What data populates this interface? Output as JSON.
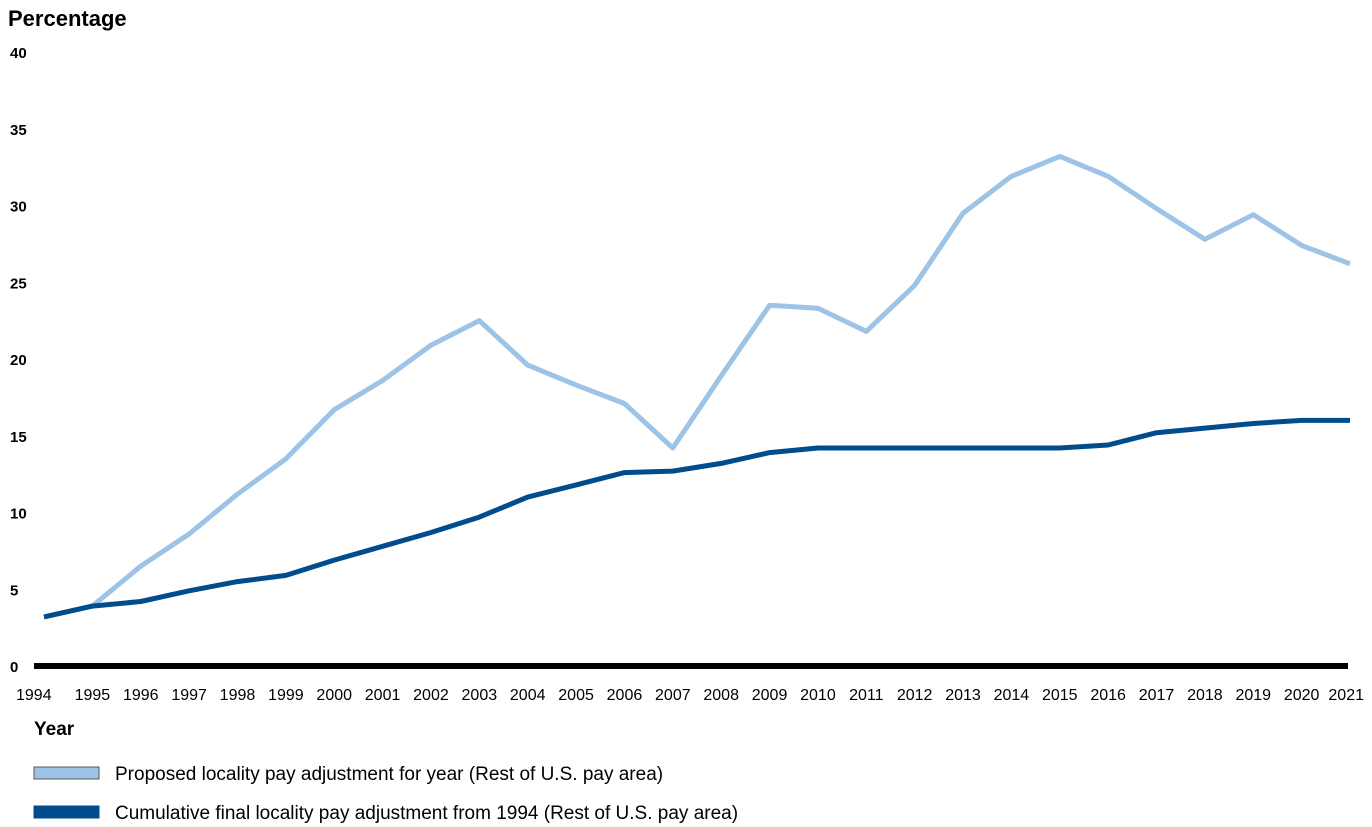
{
  "chart_data": {
    "type": "line",
    "ylabel": "Percentage",
    "xlabel": "Year",
    "ylim": [
      0,
      40
    ],
    "yticks": [
      "0",
      "5",
      "10",
      "15",
      "20",
      "25",
      "30",
      "35",
      "40"
    ],
    "x": [
      "1994",
      "1995",
      "1996",
      "1997",
      "1998",
      "1999",
      "2000",
      "2001",
      "2002",
      "2003",
      "2004",
      "2005",
      "2006",
      "2007",
      "2008",
      "2009",
      "2010",
      "2011",
      "2012",
      "2013",
      "2014",
      "2015",
      "2016",
      "2017",
      "2018",
      "2019",
      "2020",
      "2021"
    ],
    "grid": false,
    "legend_position": "bottom-left",
    "series": [
      {
        "name": "Proposed locality pay adjustment for year (Rest of U.S. pay area)",
        "color": "#9dc3e6",
        "values": [
          3.2,
          3.9,
          6.5,
          8.6,
          11.2,
          13.5,
          16.7,
          18.6,
          20.9,
          22.5,
          19.6,
          18.3,
          17.1,
          14.2,
          18.9,
          23.5,
          23.3,
          21.8,
          24.8,
          29.5,
          31.9,
          33.2,
          31.9,
          29.8,
          27.8,
          29.4,
          27.4,
          26.2
        ]
      },
      {
        "name": "Cumulative final locality pay adjustment from 1994 (Rest of U.S. pay area)",
        "color": "#004c8c",
        "values": [
          3.2,
          3.9,
          4.2,
          4.9,
          5.5,
          5.9,
          6.9,
          7.8,
          8.7,
          9.7,
          11.0,
          11.8,
          12.6,
          12.7,
          13.2,
          13.9,
          14.2,
          14.2,
          14.2,
          14.2,
          14.2,
          14.2,
          14.4,
          15.2,
          15.5,
          15.8,
          16.0,
          16.0
        ]
      }
    ]
  }
}
